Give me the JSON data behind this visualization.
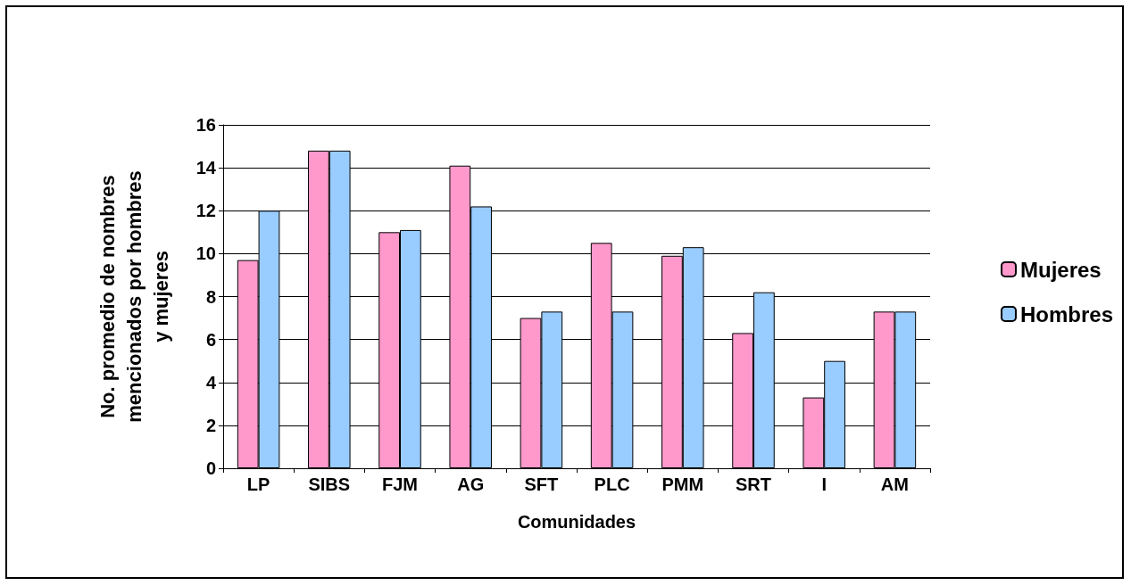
{
  "chart_data": {
    "type": "bar",
    "xlabel": "Comunidades",
    "ylabel": "No. promedio de nombres mencionados por hombres y mujeres",
    "categories": [
      "LP",
      "SIBS",
      "FJM",
      "AG",
      "SFT",
      "PLC",
      "PMM",
      "SRT",
      "I",
      "AM"
    ],
    "series": [
      {
        "name": "Mujeres",
        "color": "#ff99cc",
        "values": [
          9.7,
          14.8,
          11,
          14.1,
          7,
          10.5,
          9.9,
          6.3,
          3.3,
          7.3
        ]
      },
      {
        "name": "Hombres",
        "color": "#99ccff",
        "values": [
          12,
          14.8,
          11.1,
          12.2,
          7.3,
          7.3,
          10.3,
          8.2,
          5,
          7.3
        ]
      }
    ],
    "ylim": [
      0,
      16
    ],
    "yticks": [
      0,
      2,
      4,
      6,
      8,
      10,
      12,
      14,
      16
    ],
    "grid": "y",
    "legend": "right"
  }
}
